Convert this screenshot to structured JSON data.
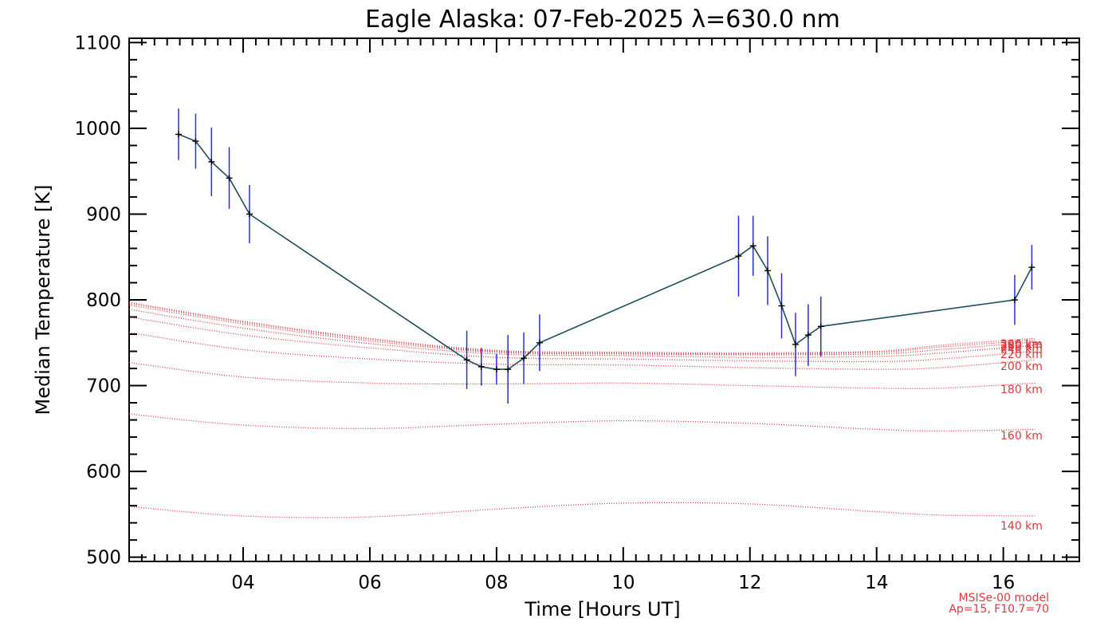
{
  "chart_data": {
    "type": "line",
    "title": "Eagle Alaska: 07-Feb-2025 λ=630.0 nm",
    "xlabel": "Time [Hours UT]",
    "ylabel": "Median Temperature [K]",
    "xlim": [
      2.2,
      17.2
    ],
    "ylim": [
      495,
      1105
    ],
    "x_ticks": [
      4,
      6,
      8,
      10,
      12,
      14,
      16
    ],
    "x_tick_labels": [
      "04",
      "06",
      "08",
      "10",
      "12",
      "14",
      "16"
    ],
    "y_ticks": [
      500,
      600,
      700,
      800,
      900,
      1000,
      1100
    ],
    "y_tick_labels": [
      "500",
      "600",
      "700",
      "800",
      "900",
      "1000",
      "1100"
    ],
    "measured": {
      "name": "Median Temperature",
      "line_color": "#1f4e5f",
      "errorbar_color": "#2a2ae8",
      "x": [
        2.98,
        3.25,
        3.5,
        3.78,
        4.1,
        7.53,
        7.76,
        8.0,
        8.18,
        8.43,
        8.68,
        11.82,
        12.05,
        12.28,
        12.5,
        12.72,
        12.92,
        13.12,
        16.18,
        16.45
      ],
      "y": [
        993,
        985,
        961,
        942,
        900,
        730,
        722,
        719,
        719,
        732,
        750,
        851,
        863,
        834,
        793,
        748,
        759,
        769,
        800,
        838
      ],
      "yerr": [
        30,
        32,
        40,
        36,
        34,
        34,
        22,
        18,
        40,
        30,
        33,
        47,
        35,
        40,
        38,
        37,
        36,
        35,
        29,
        26
      ]
    },
    "model": {
      "name": "MSISe-00 model",
      "params": "Ap=15, F10.7=70",
      "color": "#e0383c",
      "x": [
        2.2,
        4,
        6,
        8,
        10,
        12,
        14,
        15,
        16.5
      ],
      "curves": [
        {
          "label": "140 km",
          "label_y": 537,
          "y": [
            559,
            548,
            547,
            556,
            563,
            562,
            553,
            549,
            548
          ]
        },
        {
          "label": "160 km",
          "label_y": 642,
          "y": [
            667,
            654,
            650,
            655,
            659,
            656,
            649,
            647,
            649
          ]
        },
        {
          "label": "180 km",
          "label_y": 696,
          "y": [
            727,
            710,
            703,
            702,
            703,
            700,
            697,
            697,
            703
          ]
        },
        {
          "label": "200 km",
          "label_y": 723,
          "y": [
            762,
            742,
            731,
            725,
            724,
            721,
            719,
            721,
            730
          ]
        },
        {
          "label": "220 km",
          "label_y": 737,
          "y": [
            780,
            759,
            744,
            733,
            731,
            729,
            728,
            731,
            740
          ]
        },
        {
          "label": "240 km",
          "label_y": 743,
          "y": [
            789,
            767,
            749,
            737,
            735,
            733,
            734,
            738,
            747
          ]
        },
        {
          "label": "260 km",
          "label_y": 746,
          "y": [
            794,
            772,
            752,
            739,
            737,
            736,
            737,
            742,
            751
          ]
        },
        {
          "label": "280 km",
          "label_y": 748,
          "y": [
            796,
            774,
            754,
            740,
            738,
            737,
            739,
            745,
            753
          ]
        },
        {
          "label": "300 km",
          "label_y": 749,
          "y": [
            797,
            775,
            755,
            741,
            739,
            738,
            740,
            747,
            755
          ]
        }
      ]
    }
  }
}
